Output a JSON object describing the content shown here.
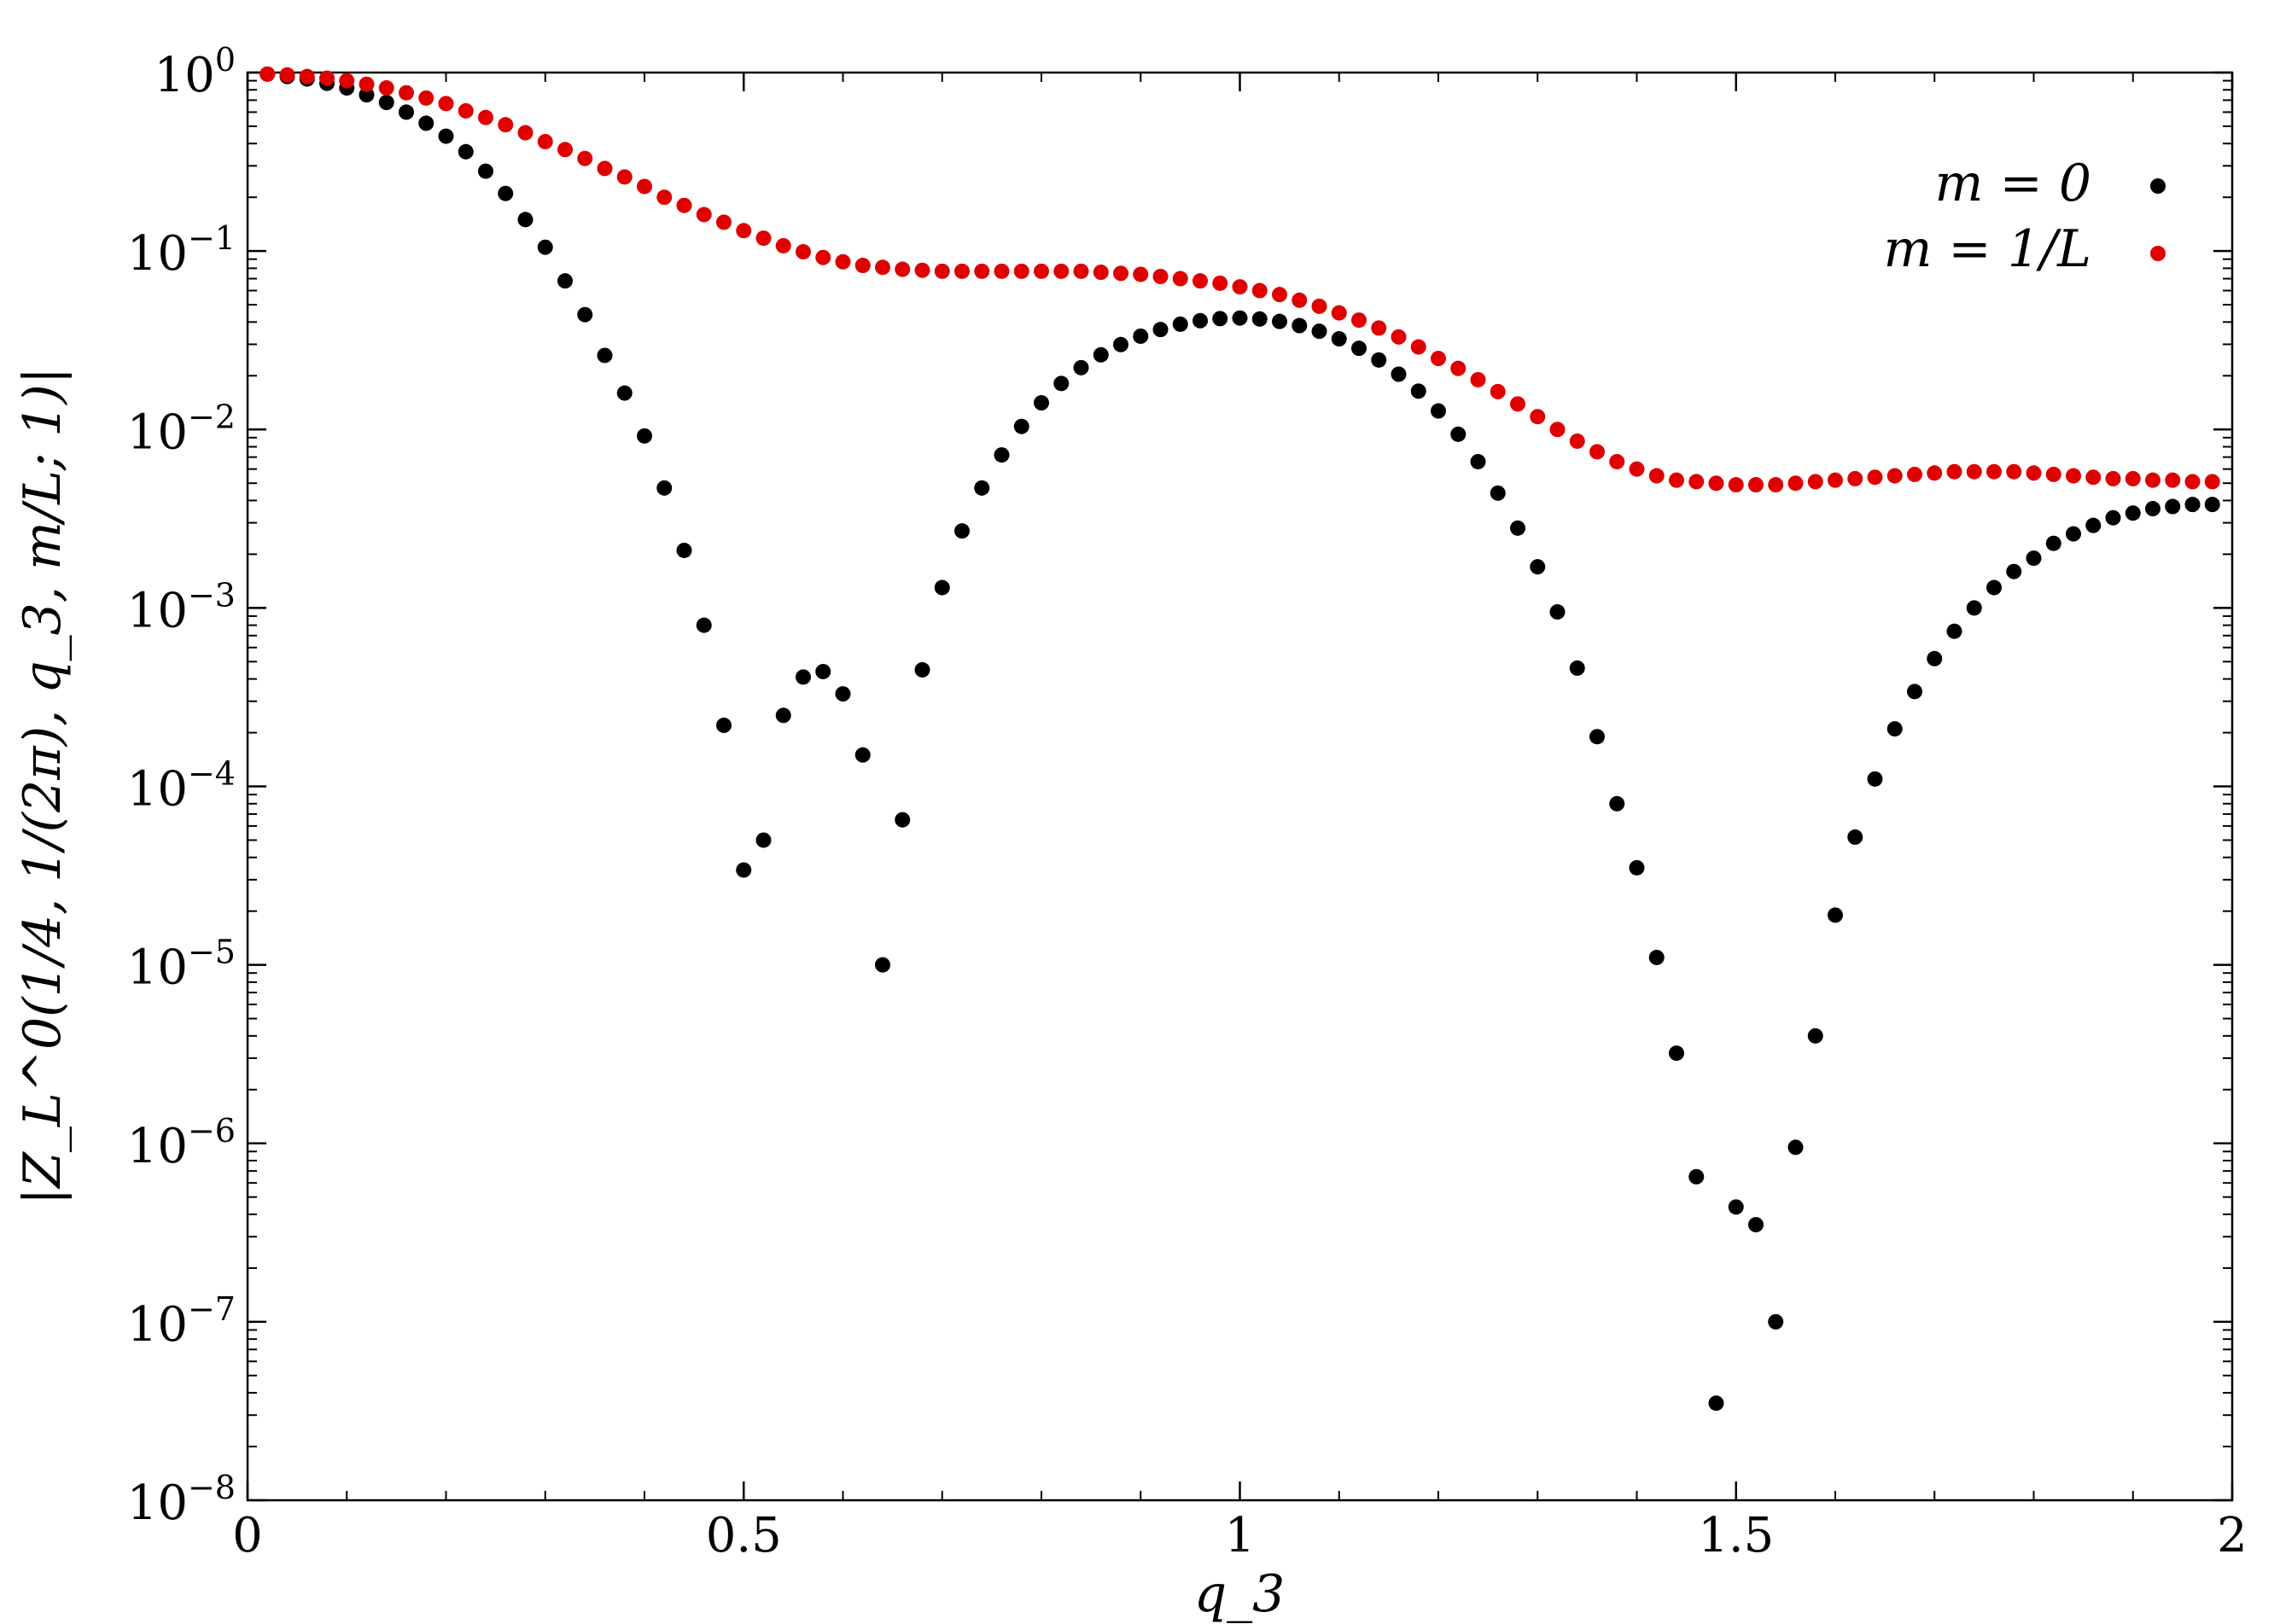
{
  "chart_data": {
    "type": "scatter",
    "xlabel": "q_3",
    "ylabel": "|Z_L^0(1/4, 1/(2π), q_3, m/L; 1)|",
    "y_scale": "log",
    "xlim": [
      0,
      2
    ],
    "ylim": [
      1e-08,
      1
    ],
    "grid": false,
    "legend_position": "top-right",
    "x_ticks": [
      {
        "value": 0,
        "label": "0"
      },
      {
        "value": 0.5,
        "label": "0.5"
      },
      {
        "value": 1,
        "label": "1"
      },
      {
        "value": 1.5,
        "label": "1.5"
      },
      {
        "value": 2,
        "label": "2"
      }
    ],
    "y_ticks": [
      {
        "value": 1,
        "base": "10",
        "exp": "0"
      },
      {
        "value": 0.1,
        "base": "10",
        "exp": "−1"
      },
      {
        "value": 0.01,
        "base": "10",
        "exp": "−2"
      },
      {
        "value": 0.001,
        "base": "10",
        "exp": "−3"
      },
      {
        "value": 0.0001,
        "base": "10",
        "exp": "−4"
      },
      {
        "value": 1e-05,
        "base": "10",
        "exp": "−5"
      },
      {
        "value": 1e-06,
        "base": "10",
        "exp": "−6"
      },
      {
        "value": 1e-07,
        "base": "10",
        "exp": "−7"
      },
      {
        "value": 1e-08,
        "base": "10",
        "exp": "−8"
      }
    ],
    "series": [
      {
        "name": "m = 0",
        "color": "#000000",
        "x": [
          0.02,
          0.04,
          0.06,
          0.08,
          0.1,
          0.12,
          0.14,
          0.16,
          0.18,
          0.2,
          0.22,
          0.24,
          0.26,
          0.28,
          0.3,
          0.32,
          0.34,
          0.36,
          0.38,
          0.4,
          0.42,
          0.44,
          0.46,
          0.48,
          0.5,
          0.52,
          0.54,
          0.56,
          0.58,
          0.6,
          0.62,
          0.64,
          0.66,
          0.68,
          0.7,
          0.72,
          0.74,
          0.76,
          0.78,
          0.8,
          0.82,
          0.84,
          0.86,
          0.88,
          0.9,
          0.92,
          0.94,
          0.96,
          0.98,
          1.0,
          1.02,
          1.04,
          1.06,
          1.08,
          1.1,
          1.12,
          1.14,
          1.16,
          1.18,
          1.2,
          1.22,
          1.24,
          1.26,
          1.28,
          1.3,
          1.32,
          1.34,
          1.36,
          1.38,
          1.4,
          1.42,
          1.44,
          1.46,
          1.48,
          1.5,
          1.52,
          1.54,
          1.56,
          1.58,
          1.6,
          1.62,
          1.64,
          1.66,
          1.68,
          1.7,
          1.72,
          1.74,
          1.76,
          1.78,
          1.8,
          1.82,
          1.84,
          1.86,
          1.88,
          1.9,
          1.92,
          1.94,
          1.96,
          1.98
        ],
        "y": [
          0.98,
          0.95,
          0.92,
          0.87,
          0.82,
          0.75,
          0.68,
          0.6,
          0.52,
          0.44,
          0.36,
          0.28,
          0.21,
          0.15,
          0.105,
          0.068,
          0.044,
          0.026,
          0.016,
          0.0092,
          0.0047,
          0.0021,
          0.0008,
          0.00022,
          3.4e-05,
          5e-05,
          0.00025,
          0.00041,
          0.00044,
          0.00033,
          0.00015,
          1e-05,
          6.5e-05,
          0.00045,
          0.0013,
          0.0027,
          0.0047,
          0.0072,
          0.0104,
          0.0141,
          0.0181,
          0.0222,
          0.0262,
          0.0299,
          0.0333,
          0.0363,
          0.0389,
          0.0407,
          0.0418,
          0.0421,
          0.0416,
          0.0403,
          0.0382,
          0.0355,
          0.0322,
          0.0285,
          0.0245,
          0.0204,
          0.0164,
          0.0127,
          0.0094,
          0.0066,
          0.0044,
          0.0028,
          0.0017,
          0.00095,
          0.00046,
          0.00019,
          8e-05,
          3.5e-05,
          1.1e-05,
          3.2e-06,
          6.5e-07,
          3.5e-08,
          4.4e-07,
          3.5e-07,
          1e-07,
          9.5e-07,
          4e-06,
          1.9e-05,
          5.2e-05,
          0.00011,
          0.00021,
          0.00034,
          0.00052,
          0.00074,
          0.001,
          0.0013,
          0.0016,
          0.0019,
          0.0023,
          0.0026,
          0.0029,
          0.0032,
          0.0034,
          0.0036,
          0.0037,
          0.0038,
          0.0038
        ]
      },
      {
        "name": "m = 1/L",
        "color": "#e00000",
        "x": [
          0.02,
          0.04,
          0.06,
          0.08,
          0.1,
          0.12,
          0.14,
          0.16,
          0.18,
          0.2,
          0.22,
          0.24,
          0.26,
          0.28,
          0.3,
          0.32,
          0.34,
          0.36,
          0.38,
          0.4,
          0.42,
          0.44,
          0.46,
          0.48,
          0.5,
          0.52,
          0.54,
          0.56,
          0.58,
          0.6,
          0.62,
          0.64,
          0.66,
          0.68,
          0.7,
          0.72,
          0.74,
          0.76,
          0.78,
          0.8,
          0.82,
          0.84,
          0.86,
          0.88,
          0.9,
          0.92,
          0.94,
          0.96,
          0.98,
          1.0,
          1.02,
          1.04,
          1.06,
          1.08,
          1.1,
          1.12,
          1.14,
          1.16,
          1.18,
          1.2,
          1.22,
          1.24,
          1.26,
          1.28,
          1.3,
          1.32,
          1.34,
          1.36,
          1.38,
          1.4,
          1.42,
          1.44,
          1.46,
          1.48,
          1.5,
          1.52,
          1.54,
          1.56,
          1.58,
          1.6,
          1.62,
          1.64,
          1.66,
          1.68,
          1.7,
          1.72,
          1.74,
          1.76,
          1.78,
          1.8,
          1.82,
          1.84,
          1.86,
          1.88,
          1.9,
          1.92,
          1.94,
          1.96,
          1.98
        ],
        "y": [
          0.98,
          0.97,
          0.95,
          0.93,
          0.9,
          0.86,
          0.82,
          0.77,
          0.72,
          0.67,
          0.61,
          0.56,
          0.51,
          0.46,
          0.41,
          0.37,
          0.33,
          0.29,
          0.26,
          0.23,
          0.2,
          0.18,
          0.16,
          0.145,
          0.13,
          0.118,
          0.107,
          0.099,
          0.092,
          0.087,
          0.083,
          0.081,
          0.079,
          0.078,
          0.077,
          0.077,
          0.077,
          0.077,
          0.077,
          0.077,
          0.077,
          0.077,
          0.076,
          0.075,
          0.074,
          0.072,
          0.07,
          0.068,
          0.066,
          0.063,
          0.06,
          0.057,
          0.053,
          0.049,
          0.045,
          0.041,
          0.037,
          0.033,
          0.029,
          0.025,
          0.022,
          0.019,
          0.0163,
          0.0139,
          0.0118,
          0.01,
          0.0086,
          0.0075,
          0.0066,
          0.006,
          0.0055,
          0.0052,
          0.0051,
          0.005,
          0.0049,
          0.0049,
          0.0049,
          0.005,
          0.0051,
          0.0052,
          0.0053,
          0.0054,
          0.0055,
          0.0056,
          0.0057,
          0.0058,
          0.0058,
          0.0058,
          0.0058,
          0.0057,
          0.0056,
          0.0055,
          0.0054,
          0.0053,
          0.0053,
          0.0052,
          0.0052,
          0.0051,
          0.0051
        ]
      }
    ]
  }
}
